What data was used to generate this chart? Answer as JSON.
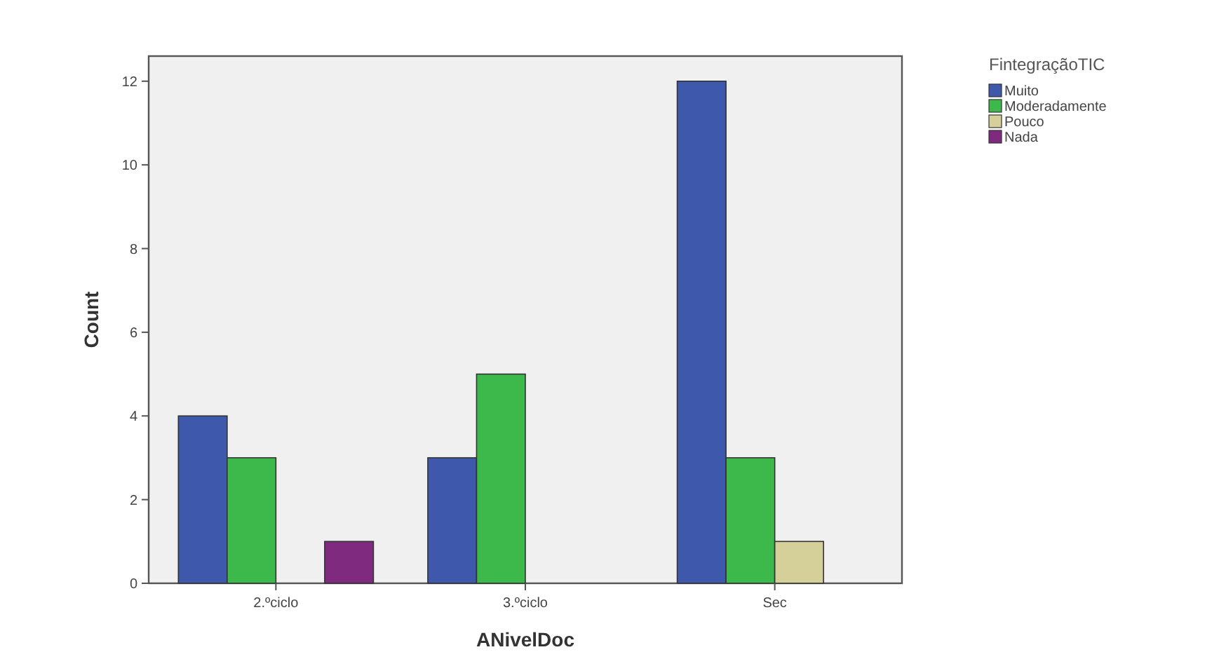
{
  "chart_data": {
    "type": "bar",
    "xlabel": "ANivelDoc",
    "ylabel": "Count",
    "legend_title": "FintegraçãoTIC",
    "legend": "right",
    "grid": false,
    "categories": [
      "2.ºciclo",
      "3.ºciclo",
      "Sec"
    ],
    "ylim": [
      0,
      12.6
    ],
    "yticks": [
      0,
      2,
      4,
      6,
      8,
      10,
      12
    ],
    "series": [
      {
        "name": "Muito",
        "color": "#3e58ac",
        "values": [
          4,
          3,
          12
        ]
      },
      {
        "name": "Moderadamente",
        "color": "#3cb94a",
        "values": [
          3,
          5,
          3
        ]
      },
      {
        "name": "Pouco",
        "color": "#d5d09a",
        "values": [
          null,
          null,
          1
        ]
      },
      {
        "name": "Nada",
        "color": "#7f2a7f",
        "values": [
          1,
          null,
          null
        ]
      }
    ]
  }
}
